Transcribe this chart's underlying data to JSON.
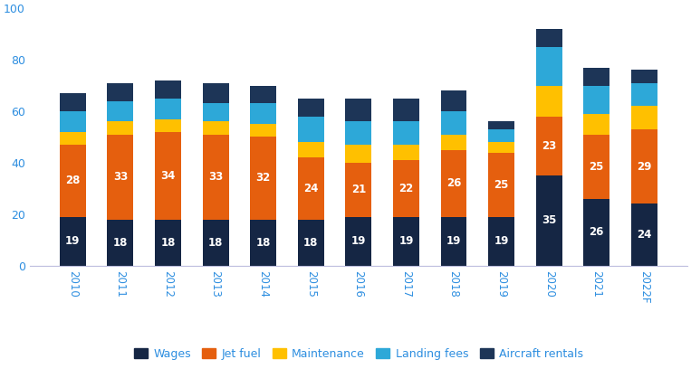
{
  "years": [
    "2010",
    "2011",
    "2012",
    "2013",
    "2014",
    "2015",
    "2016",
    "2017",
    "2018",
    "2019",
    "2020",
    "2021",
    "2022F"
  ],
  "wages": [
    19,
    18,
    18,
    18,
    18,
    18,
    19,
    19,
    19,
    19,
    35,
    26,
    24
  ],
  "jet_fuel": [
    28,
    33,
    34,
    33,
    32,
    24,
    21,
    22,
    26,
    25,
    23,
    25,
    29
  ],
  "maintenance": [
    5,
    5,
    5,
    5,
    5,
    6,
    7,
    6,
    6,
    4,
    12,
    8,
    9
  ],
  "landing_fees": [
    8,
    8,
    8,
    7,
    8,
    10,
    9,
    9,
    9,
    5,
    15,
    11,
    9
  ],
  "aircraft_rentals": [
    7,
    7,
    7,
    8,
    7,
    7,
    9,
    9,
    8,
    3,
    7,
    7,
    5
  ],
  "wages_color": "#152644",
  "jet_fuel_color": "#e55f0e",
  "maintenance_color": "#ffc000",
  "landing_fees_color": "#2da8d8",
  "aircraft_rentals_color": "#1d3557",
  "tick_color": "#2d8ee0",
  "background_color": "#ffffff",
  "ylim": [
    0,
    100
  ],
  "yticks": [
    0,
    20,
    40,
    60,
    80,
    100
  ],
  "bar_width": 0.55,
  "legend_labels": [
    "Wages",
    "Jet fuel",
    "Maintenance",
    "Landing fees",
    "Aircraft rentals"
  ]
}
